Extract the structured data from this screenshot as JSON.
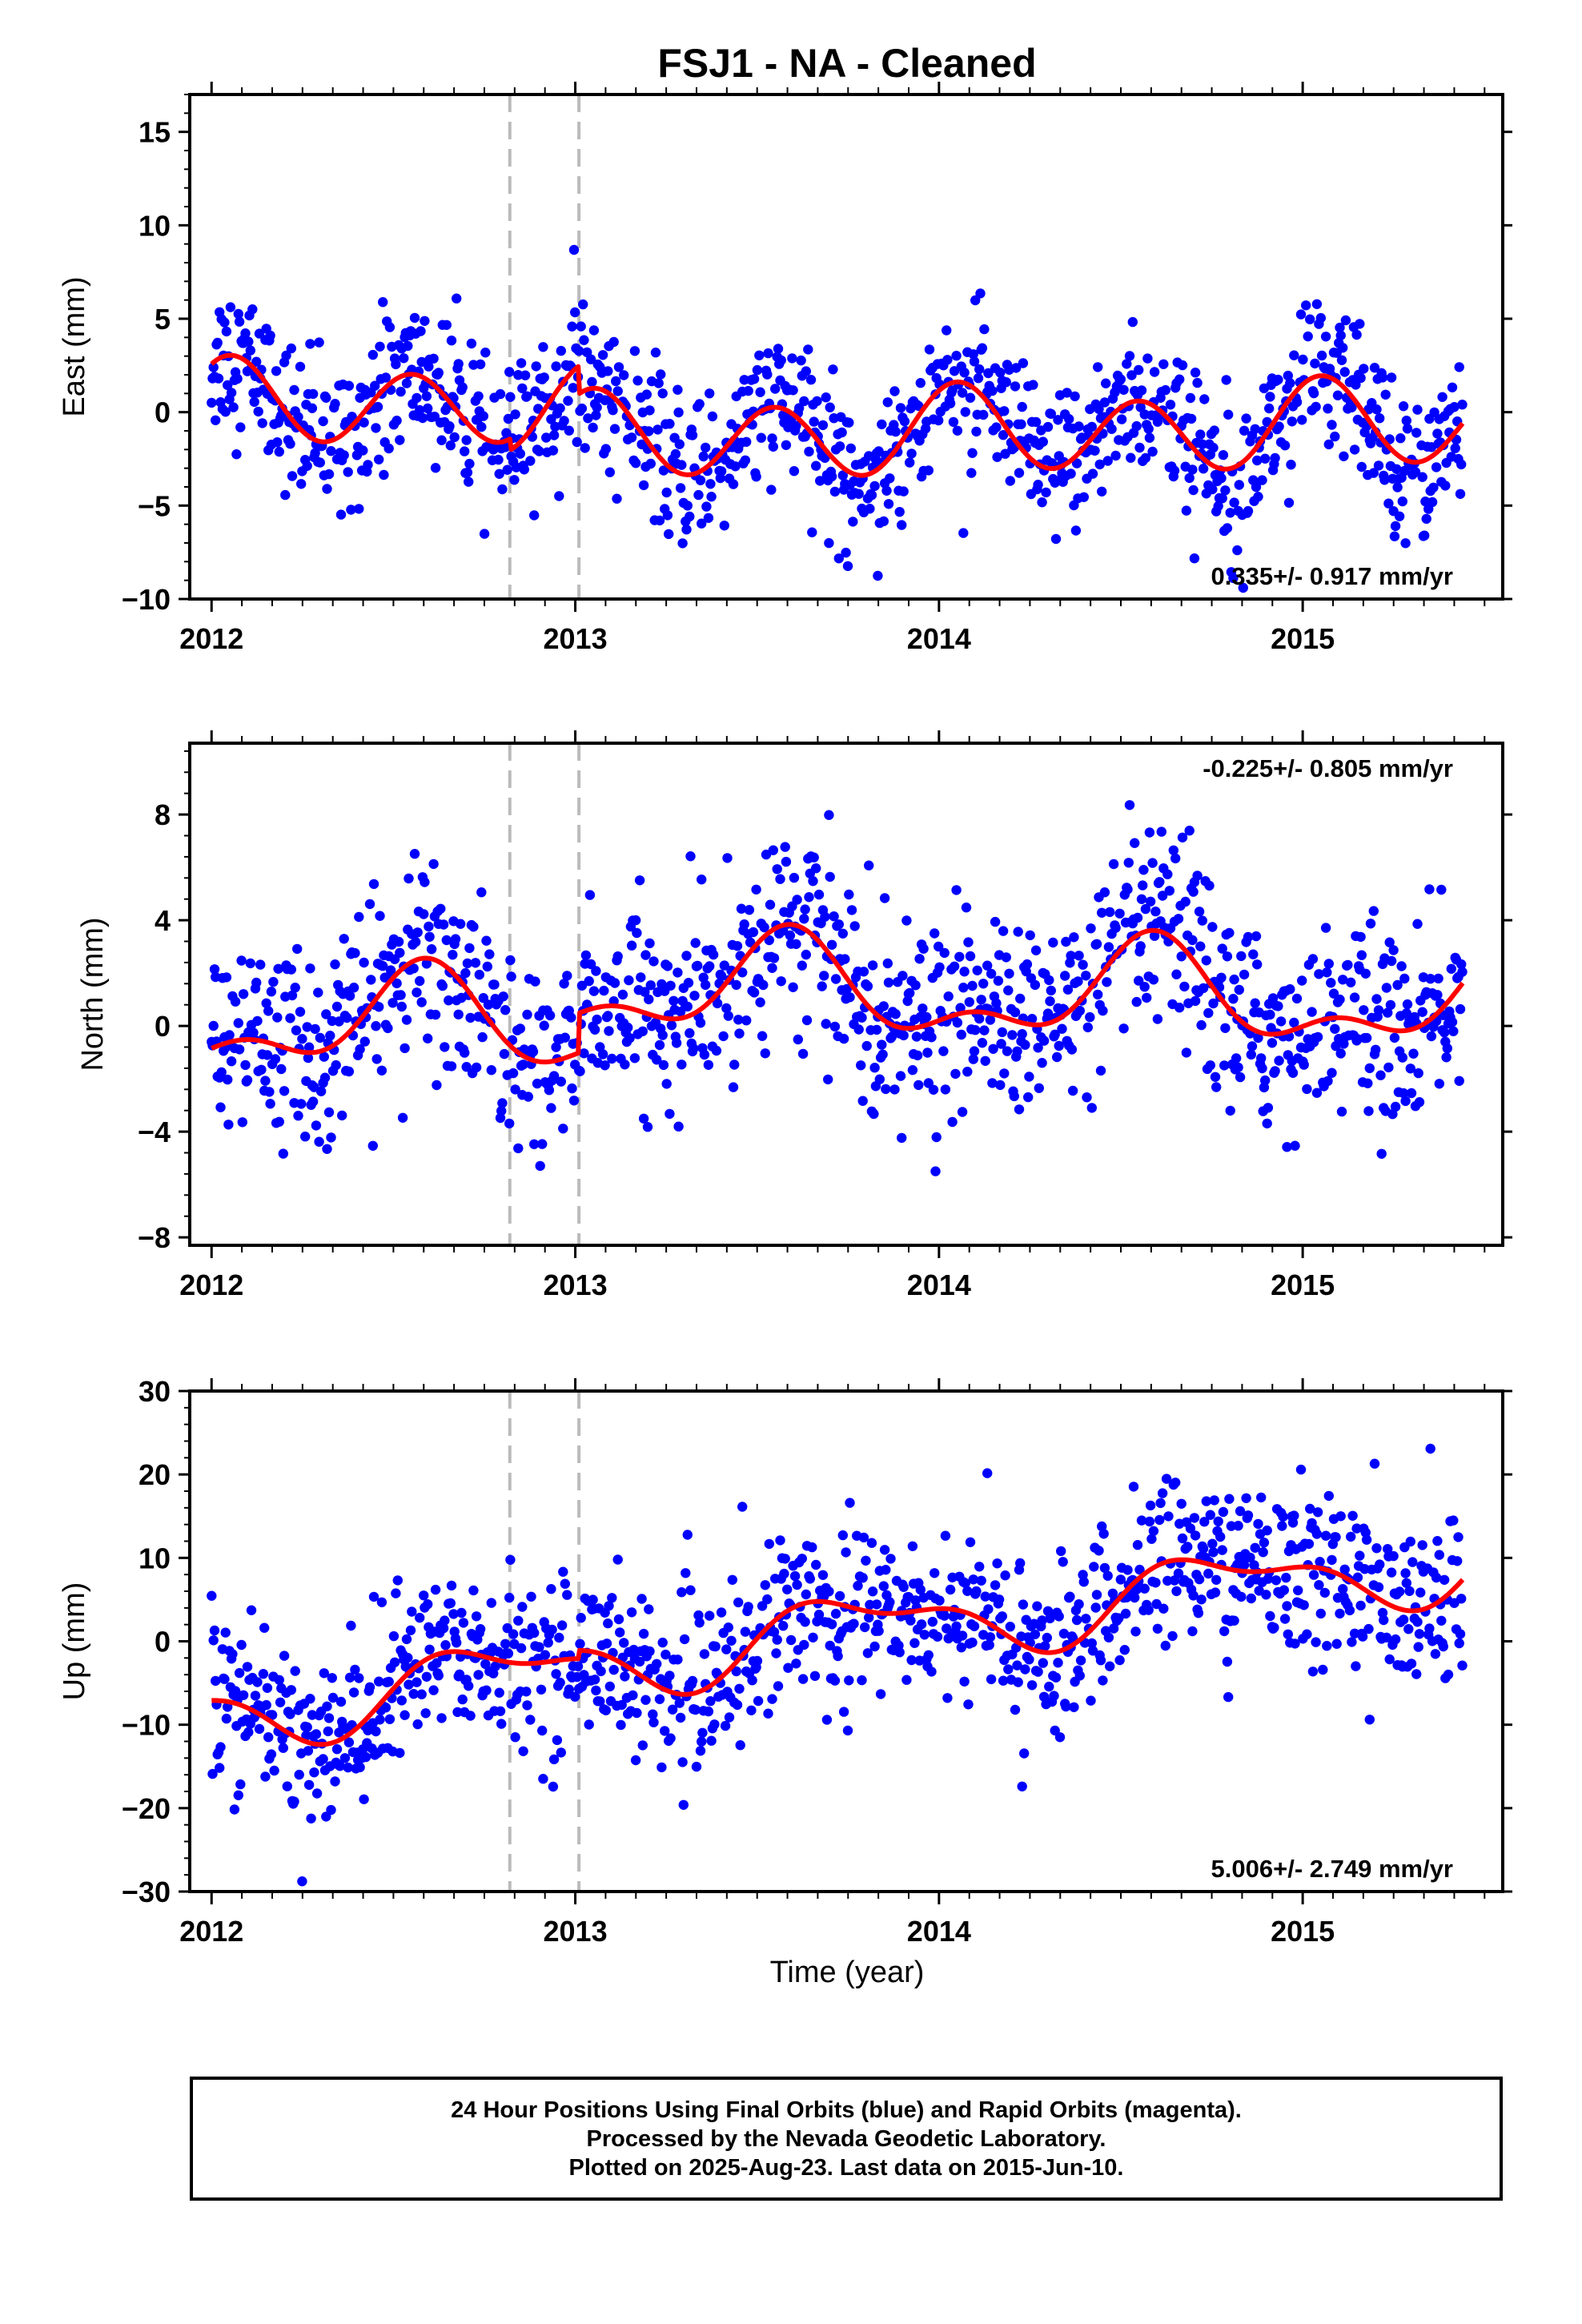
{
  "title": "FSJ1  - NA - Cleaned",
  "xlabel": "Time (year)",
  "footer": [
    "24 Hour Positions Using Final Orbits (blue) and Rapid Orbits (magenta).",
    "Processed by the Nevada Geodetic Laboratory.",
    "Plotted on 2025-Aug-23. Last data on 2015-Jun-10."
  ],
  "colors": {
    "points": "#0000ff",
    "model": "#ff0000",
    "breaks": "#bbbbbb"
  },
  "chart_data": [
    {
      "type": "scatter",
      "component": "east",
      "ylabel": "East (mm)",
      "rate_text": "0.335+/- 0.917 mm/yr",
      "rate_position": "bottom-right",
      "xlim": [
        2011.94,
        2015.55
      ],
      "ylim": [
        -10,
        17
      ],
      "yticks": [
        15,
        10,
        5,
        0,
        -5,
        -10
      ],
      "yticklabels": [
        "15",
        "10",
        "5",
        "0",
        "−5",
        "−10"
      ],
      "xticks": [
        2012,
        2013,
        2014,
        2015
      ],
      "xticklabels": [
        "2012",
        "2013",
        "2014",
        "2015"
      ],
      "breaks": [
        2012.82,
        2013.01
      ],
      "model": {
        "offset": 0.335,
        "rate": 0.335,
        "t0": 2012.0,
        "a1": 0.6,
        "a2": 2.1,
        "ph1": 1.1,
        "ph2": 0.95,
        "noise": 2.0,
        "segments": [
          [
            2012.0,
            2012.82
          ],
          [
            2012.82,
            2013.01
          ],
          [
            2013.01,
            2015.44
          ]
        ],
        "steps": [
          -0.6,
          -1.5,
          1.5,
          0.0,
          0.0,
          0.0
        ]
      },
      "x_range": [
        2012.0,
        2015.44
      ]
    },
    {
      "type": "scatter",
      "component": "north",
      "ylabel": "North (mm)",
      "rate_text": "-0.225+/- 0.805 mm/yr",
      "rate_position": "top-right",
      "xlim": [
        2011.94,
        2015.55
      ],
      "ylim": [
        -8.3,
        10.7
      ],
      "yticks": [
        8,
        4,
        0,
        -4,
        -8
      ],
      "yticklabels": [
        "8",
        "4",
        "0",
        "−4",
        "−8"
      ],
      "xticks": [
        2012,
        2013,
        2014,
        2015
      ],
      "xticklabels": [
        "2012",
        "2013",
        "2014",
        "2015"
      ],
      "breaks": [
        2012.82,
        2013.01
      ],
      "model": {
        "offset": 0.2,
        "rate": -0.225,
        "t0": 2012.0,
        "a1": 1.6,
        "a2": 0.9,
        "ph1": 4.2,
        "ph2": 0.4,
        "noise": 1.8,
        "segments": [
          [
            2012.0,
            2012.82
          ],
          [
            2012.82,
            2013.01
          ],
          [
            2013.01,
            2015.44
          ]
        ],
        "steps": [
          0.0,
          1.5,
          -0.5,
          0.0,
          0.0,
          0.0
        ]
      },
      "x_range": [
        2012.0,
        2015.44
      ]
    },
    {
      "type": "scatter",
      "component": "up",
      "ylabel": "Up (mm)",
      "rate_text": "5.006+/- 2.749 mm/yr",
      "rate_position": "bottom-right",
      "xlim": [
        2011.94,
        2015.55
      ],
      "ylim": [
        -30,
        30
      ],
      "yticks": [
        30,
        20,
        10,
        0,
        -10,
        -20,
        -30
      ],
      "yticklabels": [
        "30",
        "20",
        "10",
        "0",
        "−10",
        "−20",
        "−30"
      ],
      "xticks": [
        2012,
        2013,
        2014,
        2015
      ],
      "xticklabels": [
        "2012",
        "2013",
        "2014",
        "2015"
      ],
      "breaks": [
        2012.82,
        2013.01
      ],
      "model": {
        "offset": -8.5,
        "rate": 5.006,
        "t0": 2012.0,
        "a1": 3.8,
        "a2": 1.8,
        "ph1": 3.0,
        "ph2": 0.5,
        "noise": 5.0,
        "segments": [
          [
            2012.0,
            2012.82
          ],
          [
            2012.82,
            2013.01
          ],
          [
            2013.01,
            2015.44
          ]
        ],
        "steps": [
          0.0,
          1.0,
          -2.0,
          0.0,
          0.0,
          0.0
        ]
      },
      "x_range": [
        2012.0,
        2015.44
      ]
    }
  ]
}
